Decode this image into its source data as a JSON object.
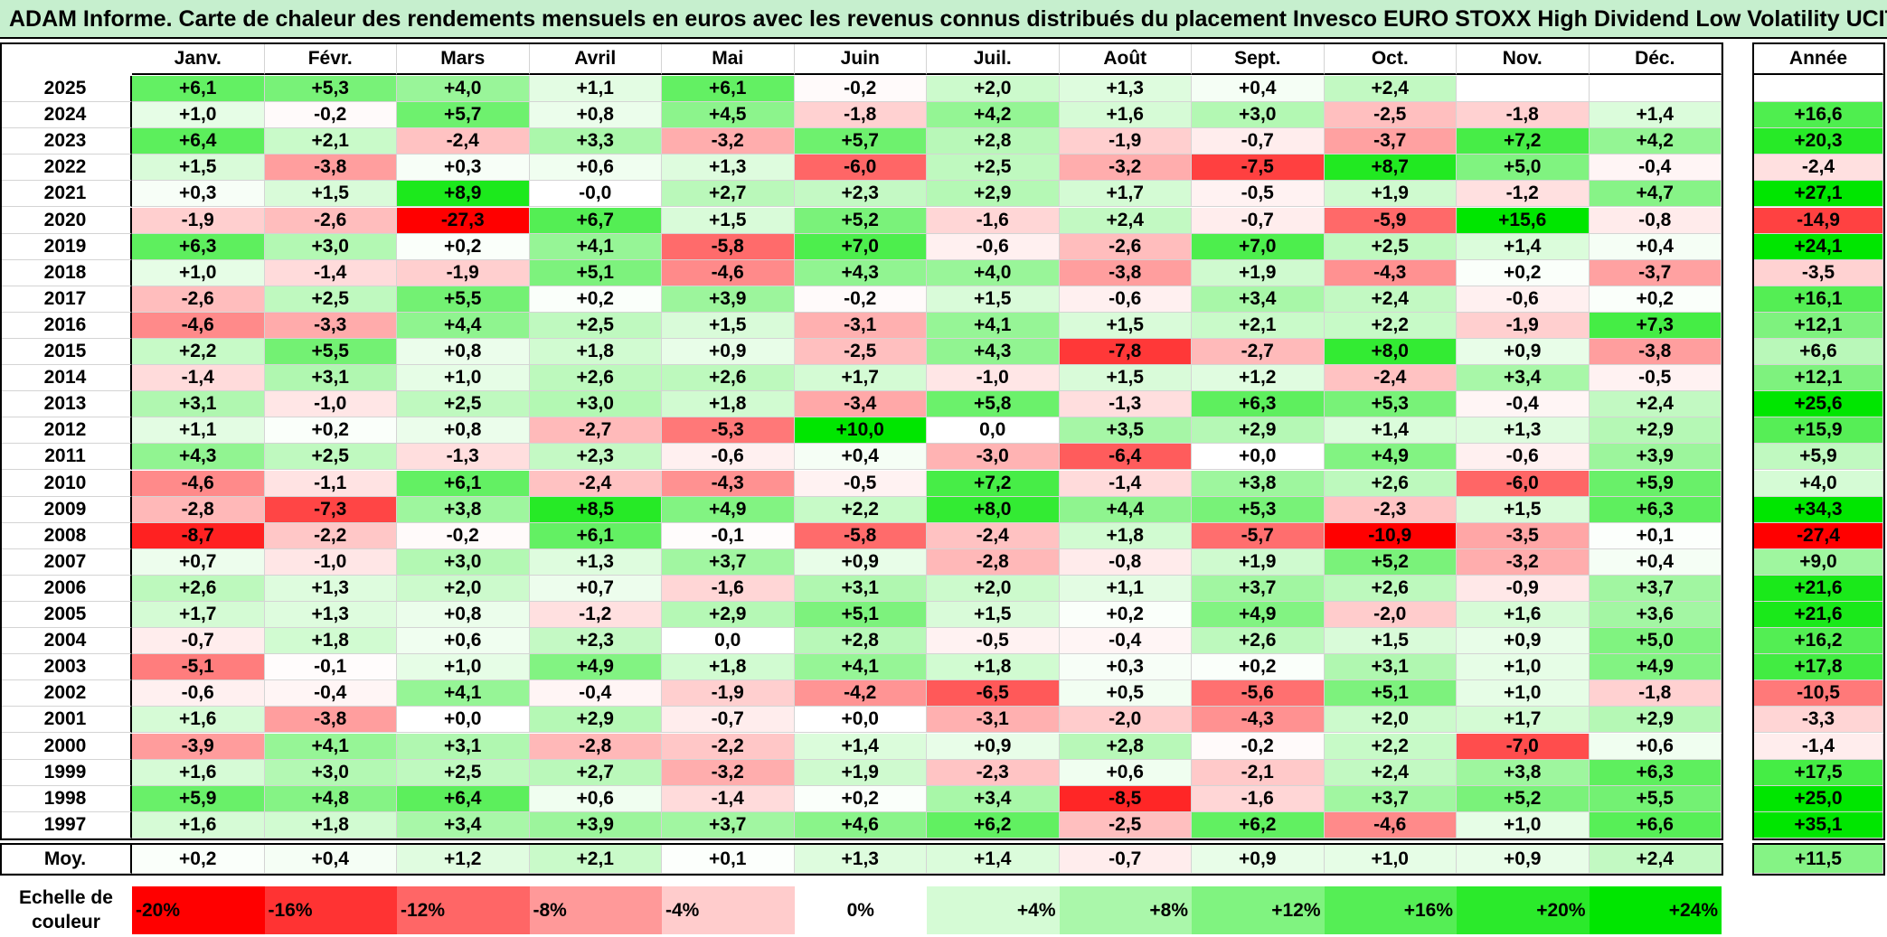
{
  "chart_data": {
    "type": "heatmap",
    "title": "ADAM Informe. Carte de chaleur des rendements mensuels en euros avec les revenus connus distribués du placement Invesco EURO STOXX High Dividend Low Volatility UCITS ETF",
    "columns": [
      "Janv.",
      "Févr.",
      "Mars",
      "Avril",
      "Mai",
      "Juin",
      "Juil.",
      "Août",
      "Sept.",
      "Oct.",
      "Nov.",
      "Déc."
    ],
    "year_column_label": "Année",
    "rows": [
      {
        "year": "2025",
        "values": [
          "+6,1",
          "+5,3",
          "+4,0",
          "+1,1",
          "+6,1",
          "-0,2",
          "+2,0",
          "+1,3",
          "+0,4",
          "+2,4",
          "",
          ""
        ],
        "annual": ""
      },
      {
        "year": "2024",
        "values": [
          "+1,0",
          "-0,2",
          "+5,7",
          "+0,8",
          "+4,5",
          "-1,8",
          "+4,2",
          "+1,6",
          "+3,0",
          "-2,5",
          "-1,8",
          "+1,4"
        ],
        "annual": "+16,6"
      },
      {
        "year": "2023",
        "values": [
          "+6,4",
          "+2,1",
          "-2,4",
          "+3,3",
          "-3,2",
          "+5,7",
          "+2,8",
          "-1,9",
          "-0,7",
          "-3,7",
          "+7,2",
          "+4,2"
        ],
        "annual": "+20,3"
      },
      {
        "year": "2022",
        "values": [
          "+1,5",
          "-3,8",
          "+0,3",
          "+0,6",
          "+1,3",
          "-6,0",
          "+2,5",
          "-3,2",
          "-7,5",
          "+8,7",
          "+5,0",
          "-0,4"
        ],
        "annual": "-2,4"
      },
      {
        "year": "2021",
        "values": [
          "+0,3",
          "+1,5",
          "+8,9",
          "-0,0",
          "+2,7",
          "+2,3",
          "+2,9",
          "+1,7",
          "-0,5",
          "+1,9",
          "-1,2",
          "+4,7"
        ],
        "annual": "+27,1"
      },
      {
        "year": "2020",
        "values": [
          "-1,9",
          "-2,6",
          "-27,3",
          "+6,7",
          "+1,5",
          "+5,2",
          "-1,6",
          "+2,4",
          "-0,7",
          "-5,9",
          "+15,6",
          "-0,8"
        ],
        "annual": "-14,9"
      },
      {
        "year": "2019",
        "values": [
          "+6,3",
          "+3,0",
          "+0,2",
          "+4,1",
          "-5,8",
          "+7,0",
          "-0,6",
          "-2,6",
          "+7,0",
          "+2,5",
          "+1,4",
          "+0,4"
        ],
        "annual": "+24,1"
      },
      {
        "year": "2018",
        "values": [
          "+1,0",
          "-1,4",
          "-1,9",
          "+5,1",
          "-4,6",
          "+4,3",
          "+4,0",
          "-3,8",
          "+1,9",
          "-4,3",
          "+0,2",
          "-3,7"
        ],
        "annual": "-3,5"
      },
      {
        "year": "2017",
        "values": [
          "-2,6",
          "+2,5",
          "+5,5",
          "+0,2",
          "+3,9",
          "-0,2",
          "+1,5",
          "-0,6",
          "+3,4",
          "+2,4",
          "-0,6",
          "+0,2"
        ],
        "annual": "+16,1"
      },
      {
        "year": "2016",
        "values": [
          "-4,6",
          "-3,3",
          "+4,4",
          "+2,5",
          "+1,5",
          "-3,1",
          "+4,1",
          "+1,5",
          "+2,1",
          "+2,2",
          "-1,9",
          "+7,3"
        ],
        "annual": "+12,1"
      },
      {
        "year": "2015",
        "values": [
          "+2,2",
          "+5,5",
          "+0,8",
          "+1,8",
          "+0,9",
          "-2,5",
          "+4,3",
          "-7,8",
          "-2,7",
          "+8,0",
          "+0,9",
          "-3,8"
        ],
        "annual": "+6,6"
      },
      {
        "year": "2014",
        "values": [
          "-1,4",
          "+3,1",
          "+1,0",
          "+2,6",
          "+2,6",
          "+1,7",
          "-1,0",
          "+1,5",
          "+1,2",
          "-2,4",
          "+3,4",
          "-0,5"
        ],
        "annual": "+12,1"
      },
      {
        "year": "2013",
        "values": [
          "+3,1",
          "-1,0",
          "+2,5",
          "+3,0",
          "+1,8",
          "-3,4",
          "+5,8",
          "-1,3",
          "+6,3",
          "+5,3",
          "-0,4",
          "+2,4"
        ],
        "annual": "+25,6"
      },
      {
        "year": "2012",
        "values": [
          "+1,1",
          "+0,2",
          "+0,8",
          "-2,7",
          "-5,3",
          "+10,0",
          "0,0",
          "+3,5",
          "+2,9",
          "+1,4",
          "+1,3",
          "+2,9"
        ],
        "annual": "+15,9"
      },
      {
        "year": "2011",
        "values": [
          "+4,3",
          "+2,5",
          "-1,3",
          "+2,3",
          "-0,6",
          "+0,4",
          "-3,0",
          "-6,4",
          "+0,0",
          "+4,9",
          "-0,6",
          "+3,9"
        ],
        "annual": "+5,9"
      },
      {
        "year": "2010",
        "values": [
          "-4,6",
          "-1,1",
          "+6,1",
          "-2,4",
          "-4,3",
          "-0,5",
          "+7,2",
          "-1,4",
          "+3,8",
          "+2,6",
          "-6,0",
          "+5,9"
        ],
        "annual": "+4,0"
      },
      {
        "year": "2009",
        "values": [
          "-2,8",
          "-7,3",
          "+3,8",
          "+8,5",
          "+4,9",
          "+2,2",
          "+8,0",
          "+4,4",
          "+5,3",
          "-2,3",
          "+1,5",
          "+6,3"
        ],
        "annual": "+34,3"
      },
      {
        "year": "2008",
        "values": [
          "-8,7",
          "-2,2",
          "-0,2",
          "+6,1",
          "-0,1",
          "-5,8",
          "-2,4",
          "+1,8",
          "-5,7",
          "-10,9",
          "-3,5",
          "+0,1"
        ],
        "annual": "-27,4"
      },
      {
        "year": "2007",
        "values": [
          "+0,7",
          "-1,0",
          "+3,0",
          "+1,3",
          "+3,7",
          "+0,9",
          "-2,8",
          "-0,8",
          "+1,9",
          "+5,2",
          "-3,2",
          "+0,4"
        ],
        "annual": "+9,0"
      },
      {
        "year": "2006",
        "values": [
          "+2,6",
          "+1,3",
          "+2,0",
          "+0,7",
          "-1,6",
          "+3,1",
          "+2,0",
          "+1,1",
          "+3,7",
          "+2,6",
          "-0,9",
          "+3,7"
        ],
        "annual": "+21,6"
      },
      {
        "year": "2005",
        "values": [
          "+1,7",
          "+1,3",
          "+0,8",
          "-1,2",
          "+2,9",
          "+5,1",
          "+1,5",
          "+0,2",
          "+4,9",
          "-2,0",
          "+1,6",
          "+3,6"
        ],
        "annual": "+21,6"
      },
      {
        "year": "2004",
        "values": [
          "-0,7",
          "+1,8",
          "+0,6",
          "+2,3",
          "0,0",
          "+2,8",
          "-0,5",
          "-0,4",
          "+2,6",
          "+1,5",
          "+0,9",
          "+5,0"
        ],
        "annual": "+16,2"
      },
      {
        "year": "2003",
        "values": [
          "-5,1",
          "-0,1",
          "+1,0",
          "+4,9",
          "+1,8",
          "+4,1",
          "+1,8",
          "+0,3",
          "+0,2",
          "+3,1",
          "+1,0",
          "+4,9"
        ],
        "annual": "+17,8"
      },
      {
        "year": "2002",
        "values": [
          "-0,6",
          "-0,4",
          "+4,1",
          "-0,4",
          "-1,9",
          "-4,2",
          "-6,5",
          "+0,5",
          "-5,6",
          "+5,1",
          "+1,0",
          "-1,8"
        ],
        "annual": "-10,5"
      },
      {
        "year": "2001",
        "values": [
          "+1,6",
          "-3,8",
          "+0,0",
          "+2,9",
          "-0,7",
          "+0,0",
          "-3,1",
          "-2,0",
          "-4,3",
          "+2,0",
          "+1,7",
          "+2,9"
        ],
        "annual": "-3,3"
      },
      {
        "year": "2000",
        "values": [
          "-3,9",
          "+4,1",
          "+3,1",
          "-2,8",
          "-2,2",
          "+1,4",
          "+0,9",
          "+2,8",
          "-0,2",
          "+2,2",
          "-7,0",
          "+0,6"
        ],
        "annual": "-1,4"
      },
      {
        "year": "1999",
        "values": [
          "+1,6",
          "+3,0",
          "+2,5",
          "+2,7",
          "-3,2",
          "+1,9",
          "-2,3",
          "+0,6",
          "-2,1",
          "+2,4",
          "+3,8",
          "+6,3"
        ],
        "annual": "+17,5"
      },
      {
        "year": "1998",
        "values": [
          "+5,9",
          "+4,8",
          "+6,4",
          "+0,6",
          "-1,4",
          "+0,2",
          "+3,4",
          "-8,5",
          "-1,6",
          "+3,7",
          "+5,2",
          "+5,5"
        ],
        "annual": "+25,0"
      },
      {
        "year": "1997",
        "values": [
          "+1,6",
          "+1,8",
          "+3,4",
          "+3,9",
          "+3,7",
          "+4,6",
          "+6,2",
          "-2,5",
          "+6,2",
          "-4,6",
          "+1,0",
          "+6,6"
        ],
        "annual": "+35,1"
      }
    ],
    "average": {
      "label": "Moy.",
      "values": [
        "+0,2",
        "+0,4",
        "+1,2",
        "+2,1",
        "+0,1",
        "+1,3",
        "+1,4",
        "-0,7",
        "+0,9",
        "+1,0",
        "+0,9",
        "+2,4"
      ],
      "annual": "+11,5"
    },
    "color_scale": {
      "label": "Echelle de couleur",
      "stops": [
        "-20%",
        "-16%",
        "-12%",
        "-8%",
        "-4%",
        "0%",
        "+4%",
        "+8%",
        "+12%",
        "+16%",
        "+20%",
        "+24%"
      ],
      "negative_color": "#ff0000",
      "positive_color": "#00e600",
      "neutral_color": "#ffffff"
    }
  }
}
